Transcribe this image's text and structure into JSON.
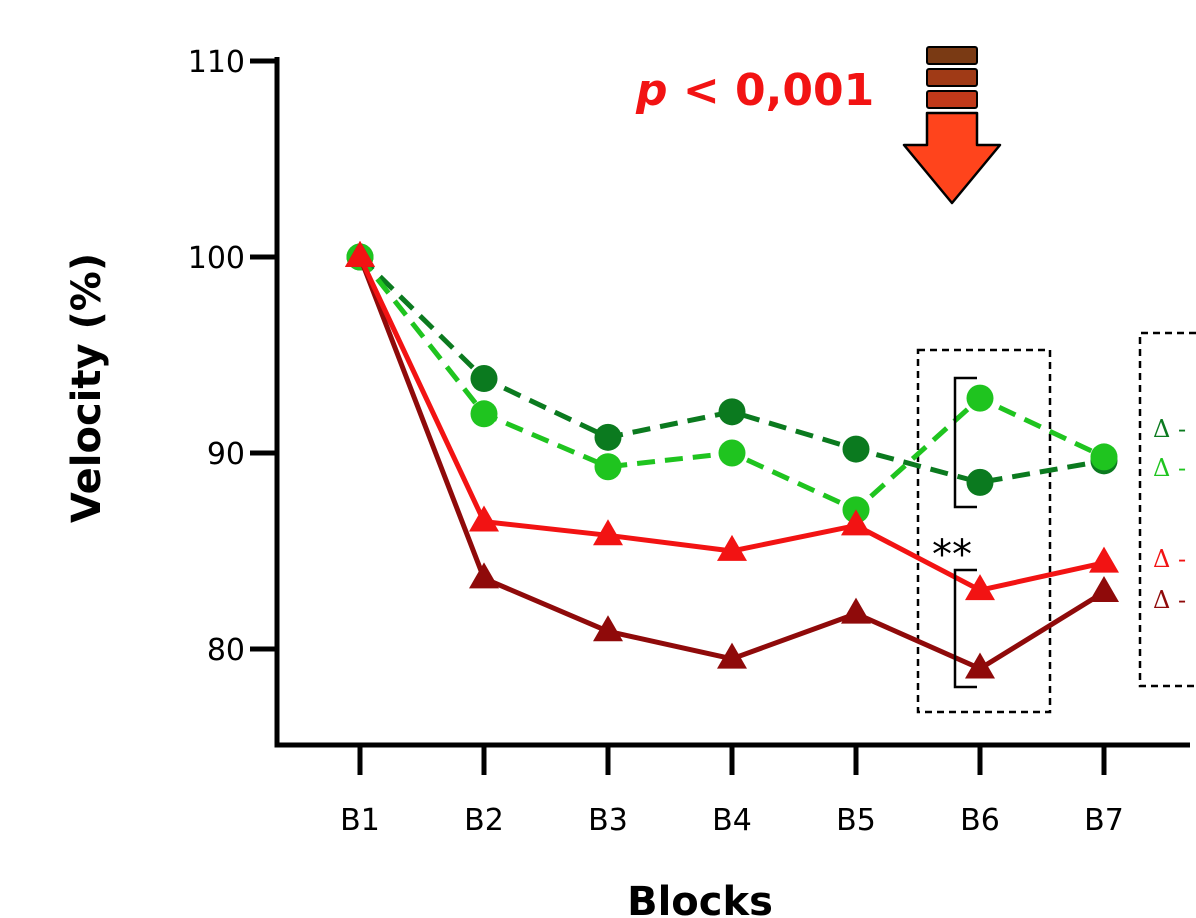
{
  "chart_data": {
    "type": "line",
    "xlabel": "Blocks",
    "ylabel": "Velocity (%)",
    "categories": [
      "B1",
      "B2",
      "B3",
      "B4",
      "B5",
      "B6",
      "B7"
    ],
    "ylim": [
      75,
      110
    ],
    "yticks": [
      80,
      90,
      100,
      110
    ],
    "series": [
      {
        "values": [
          100,
          93.8,
          90.8,
          92.1,
          90.2,
          88.5,
          89.6
        ],
        "color": "#0b7a1f",
        "marker": "circle",
        "line": "dashed"
      },
      {
        "values": [
          100,
          92.0,
          89.3,
          90.0,
          87.1,
          92.8,
          89.8
        ],
        "color": "#1fc41f",
        "marker": "circle",
        "line": "dashed"
      },
      {
        "values": [
          100,
          86.5,
          85.8,
          85.0,
          86.3,
          83.0,
          84.4
        ],
        "color": "#f21313",
        "marker": "triangle",
        "line": "solid"
      },
      {
        "values": [
          100,
          83.6,
          80.9,
          79.5,
          81.8,
          79.0,
          82.9
        ],
        "color": "#8f0a0a",
        "marker": "triangle",
        "line": "solid"
      }
    ],
    "annotations": {
      "p_symbol": "p",
      "p_rest": " < 0,001",
      "significance": "**",
      "legend_prefix": "Δ -"
    }
  }
}
